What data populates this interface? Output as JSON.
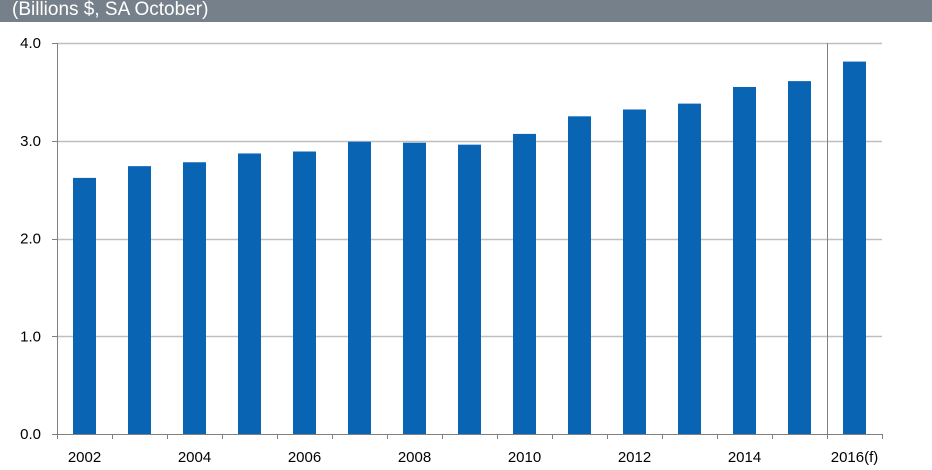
{
  "header": {
    "subtitle": "(Billions $, SA October)"
  },
  "colors": {
    "bar": "#0a64b4",
    "grid": "#bfbfbf",
    "axis": "#808080",
    "header_bg": "#76808a"
  },
  "chart_data": {
    "type": "bar",
    "title": "",
    "subtitle": "(Billions $, SA October)",
    "xlabel": "",
    "ylabel": "",
    "categories": [
      "2002",
      "2003",
      "2004",
      "2005",
      "2006",
      "2007",
      "2008",
      "2009",
      "2010",
      "2011",
      "2012",
      "2013",
      "2014",
      "2015",
      "2016(f)"
    ],
    "x_tick_labels": [
      "2002",
      "2004",
      "2006",
      "2008",
      "2010",
      "2012",
      "2014",
      "2016(f)"
    ],
    "values": [
      2.62,
      2.74,
      2.78,
      2.87,
      2.89,
      2.99,
      2.98,
      2.96,
      3.07,
      3.25,
      3.32,
      3.38,
      3.55,
      3.61,
      3.81
    ],
    "ylim": [
      0,
      4
    ],
    "y_ticks": [
      "0.0",
      "1.0",
      "2.0",
      "3.0",
      "4.0"
    ],
    "grid": true,
    "legend": "none",
    "forecast_divider_after": "2015"
  }
}
